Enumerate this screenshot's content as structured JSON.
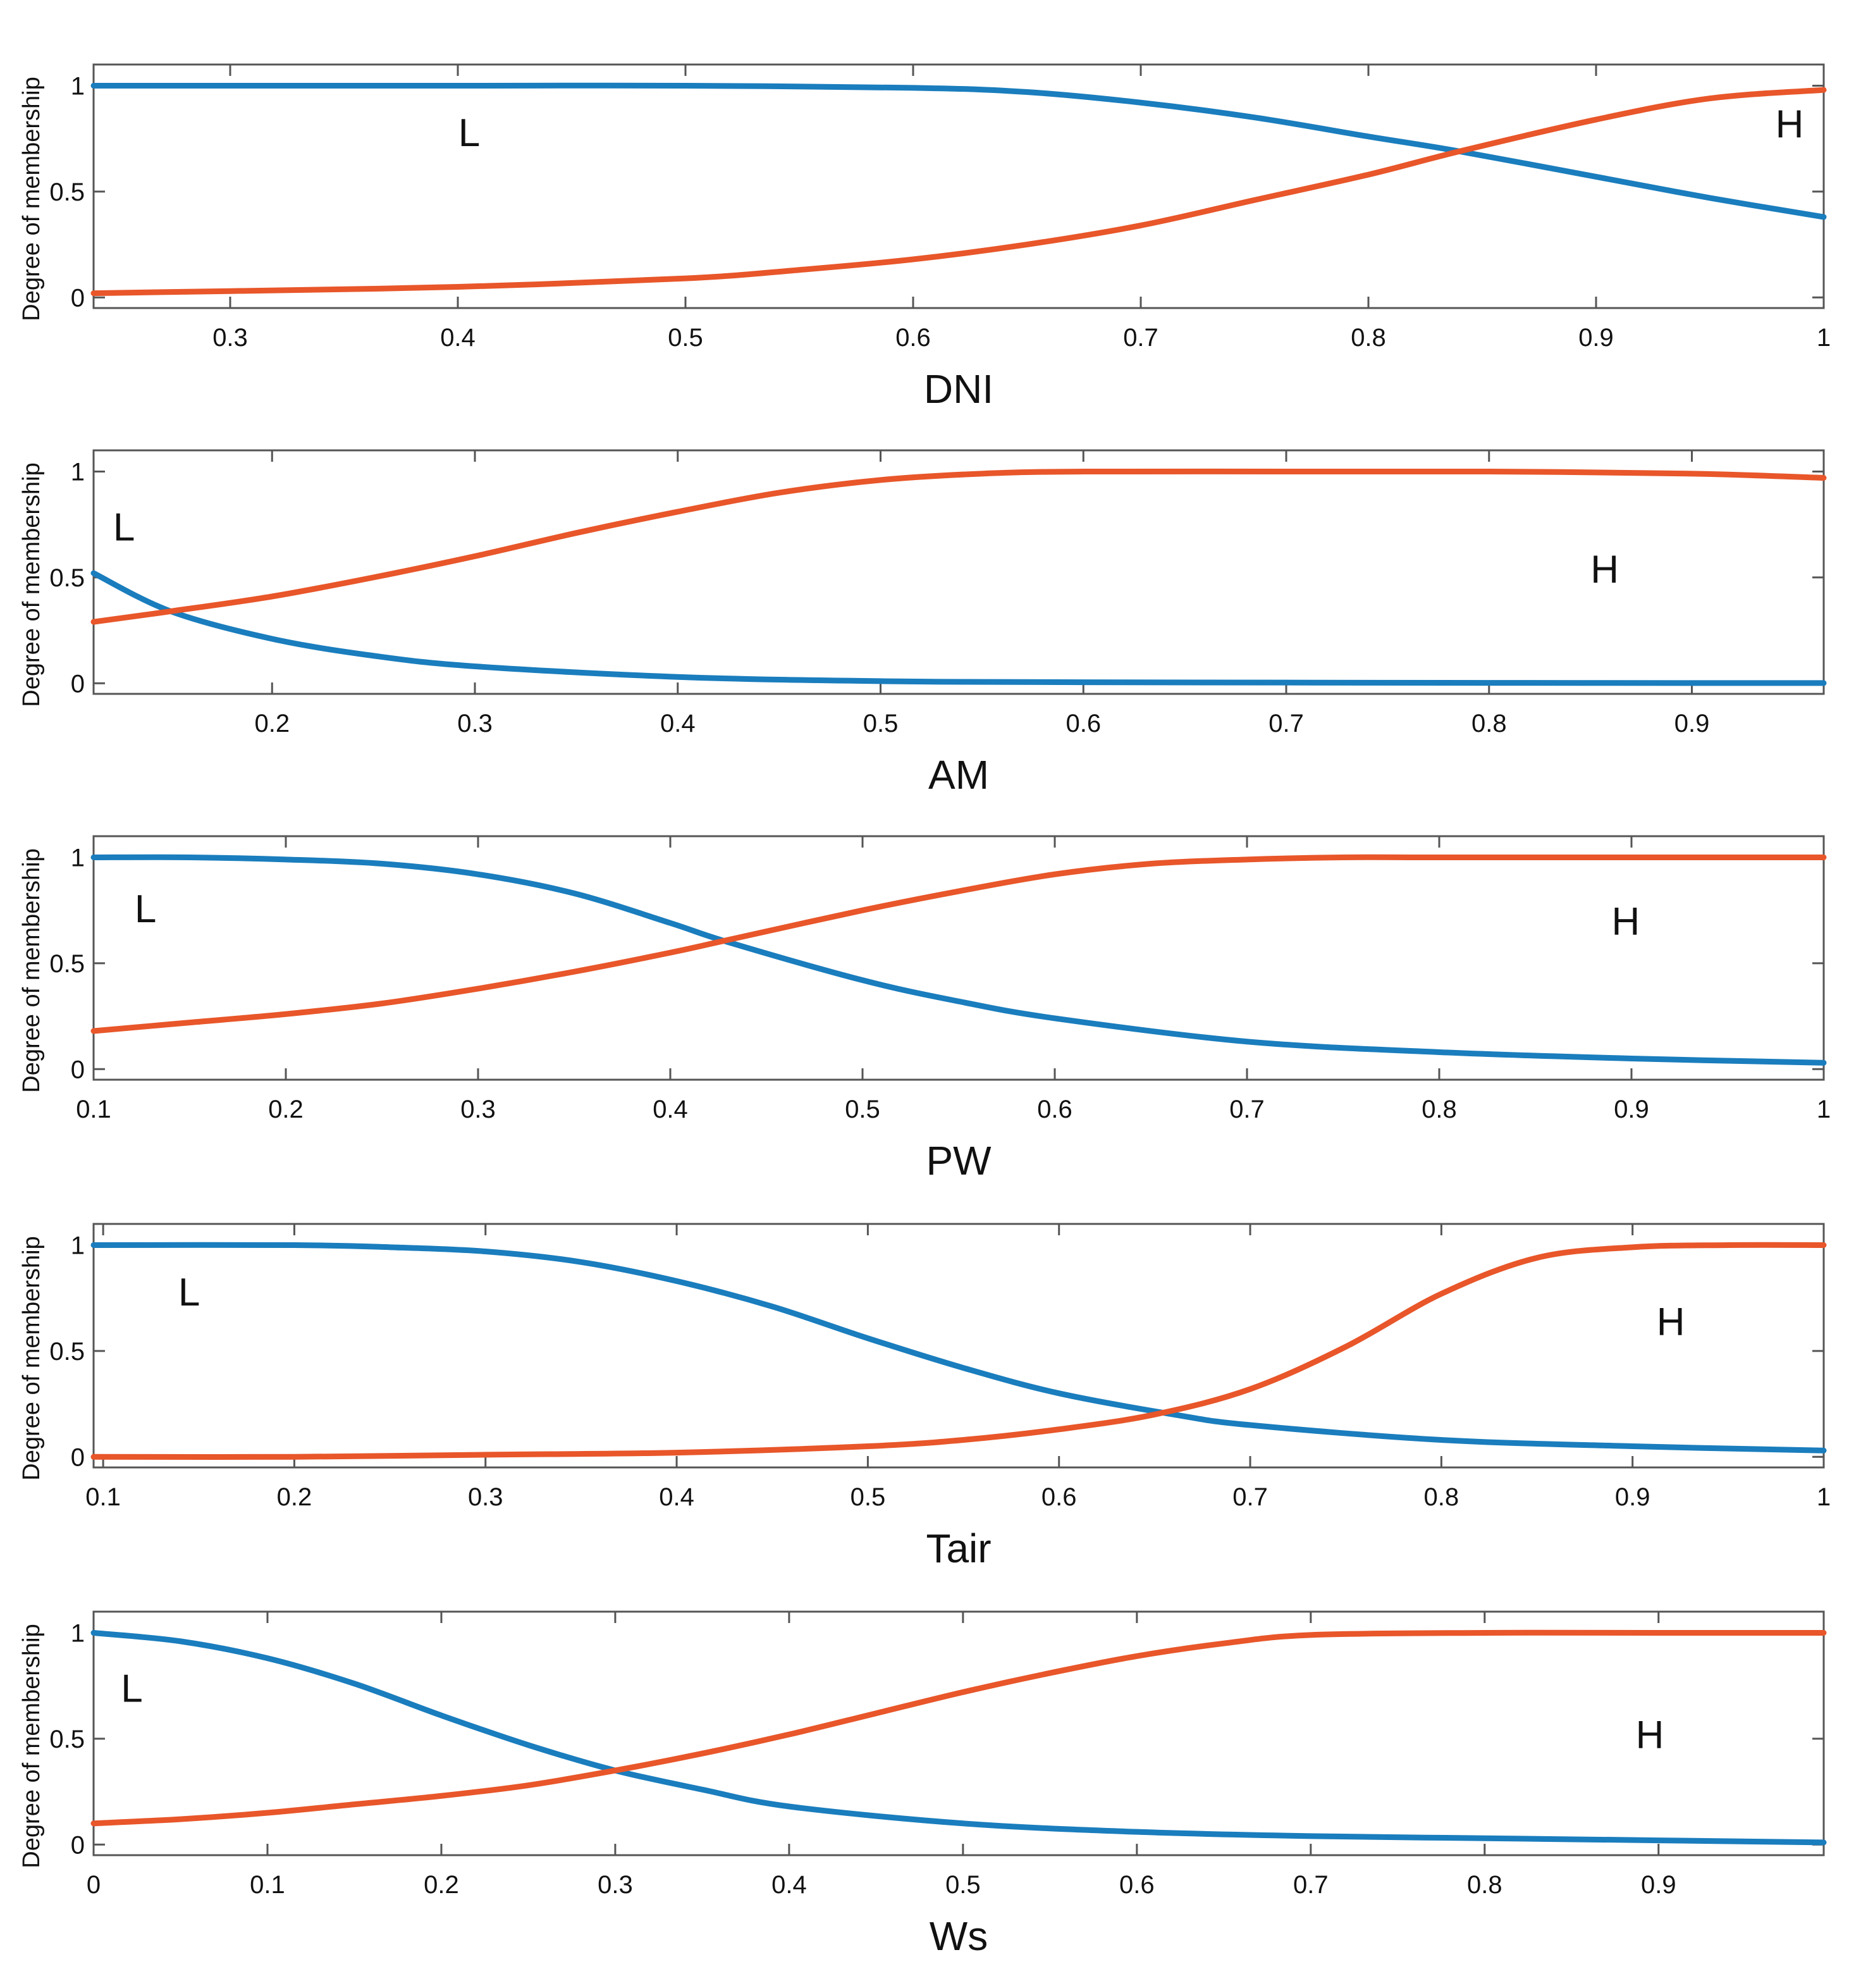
{
  "colors": {
    "low": "#1a7dbd",
    "high": "#e8562a",
    "axis": "#555555"
  },
  "chart_data": [
    {
      "type": "line",
      "xlabel": "DNI",
      "ylabel": "Degree of membership",
      "xlim": [
        0.24,
        1.0
      ],
      "ylim": [
        -0.05,
        1.1
      ],
      "xticks": [
        0.3,
        0.4,
        0.5,
        0.6,
        0.7,
        0.8,
        0.9,
        1
      ],
      "xtick_labels": [
        "0.3",
        "0.4",
        "0.5",
        "0.6",
        "0.7",
        "0.8",
        "0.9",
        "1"
      ],
      "yticks": [
        0,
        0.5,
        1
      ],
      "ytick_labels": [
        "0",
        "0.5",
        "1"
      ],
      "series": [
        {
          "name": "L",
          "x": [
            0.24,
            0.3,
            0.4,
            0.5,
            0.6,
            0.65,
            0.7,
            0.75,
            0.8,
            0.84,
            0.9,
            0.95,
            1.0
          ],
          "values": [
            1.0,
            1.0,
            1.0,
            1.0,
            0.99,
            0.97,
            0.92,
            0.85,
            0.76,
            0.69,
            0.57,
            0.47,
            0.38
          ]
        },
        {
          "name": "H",
          "x": [
            0.24,
            0.3,
            0.4,
            0.5,
            0.55,
            0.6,
            0.65,
            0.7,
            0.75,
            0.8,
            0.84,
            0.9,
            0.95,
            1.0
          ],
          "values": [
            0.02,
            0.03,
            0.05,
            0.09,
            0.13,
            0.18,
            0.25,
            0.34,
            0.46,
            0.58,
            0.69,
            0.84,
            0.94,
            0.98
          ]
        }
      ],
      "annotations": [
        {
          "text": "L",
          "x": 0.405,
          "y": 0.78
        },
        {
          "text": "H",
          "x": 0.985,
          "y": 0.82
        }
      ]
    },
    {
      "type": "line",
      "xlabel": "AM",
      "ylabel": "Degree of membership",
      "xlim": [
        0.112,
        0.965
      ],
      "ylim": [
        -0.05,
        1.1
      ],
      "xticks": [
        0.2,
        0.3,
        0.4,
        0.5,
        0.6,
        0.7,
        0.8,
        0.9
      ],
      "xtick_labels": [
        "0.2",
        "0.3",
        "0.4",
        "0.5",
        "0.6",
        "0.7",
        "0.8",
        "0.9"
      ],
      "yticks": [
        0,
        0.5,
        1
      ],
      "ytick_labels": [
        "0",
        "0.5",
        "1"
      ],
      "series": [
        {
          "name": "L",
          "x": [
            0.112,
            0.15,
            0.2,
            0.25,
            0.3,
            0.4,
            0.5,
            0.6,
            0.8,
            0.965
          ],
          "values": [
            0.52,
            0.34,
            0.21,
            0.13,
            0.08,
            0.03,
            0.01,
            0.005,
            0.002,
            0.001
          ]
        },
        {
          "name": "H",
          "x": [
            0.112,
            0.15,
            0.2,
            0.25,
            0.3,
            0.35,
            0.4,
            0.45,
            0.5,
            0.55,
            0.6,
            0.7,
            0.8,
            0.9,
            0.965
          ],
          "values": [
            0.29,
            0.34,
            0.41,
            0.5,
            0.6,
            0.71,
            0.81,
            0.9,
            0.96,
            0.99,
            1.0,
            1.0,
            1.0,
            0.99,
            0.97
          ]
        }
      ],
      "annotations": [
        {
          "text": "L",
          "x": 0.127,
          "y": 0.74
        },
        {
          "text": "H",
          "x": 0.857,
          "y": 0.54
        }
      ]
    },
    {
      "type": "line",
      "xlabel": "PW",
      "ylabel": "Degree of membership",
      "xlim": [
        0.1,
        1.0
      ],
      "ylim": [
        -0.05,
        1.1
      ],
      "xticks": [
        0.1,
        0.2,
        0.3,
        0.4,
        0.5,
        0.6,
        0.7,
        0.8,
        0.9,
        1
      ],
      "xtick_labels": [
        "0.1",
        "0.2",
        "0.3",
        "0.4",
        "0.5",
        "0.6",
        "0.7",
        "0.8",
        "0.9",
        "1"
      ],
      "yticks": [
        0,
        0.5,
        1
      ],
      "ytick_labels": [
        "0",
        "0.5",
        "1"
      ],
      "series": [
        {
          "name": "L",
          "x": [
            0.1,
            0.15,
            0.2,
            0.25,
            0.3,
            0.35,
            0.4,
            0.43,
            0.5,
            0.55,
            0.6,
            0.7,
            0.8,
            0.9,
            1.0
          ],
          "values": [
            1.0,
            1.0,
            0.99,
            0.97,
            0.92,
            0.83,
            0.69,
            0.6,
            0.42,
            0.32,
            0.24,
            0.13,
            0.08,
            0.05,
            0.03
          ]
        },
        {
          "name": "H",
          "x": [
            0.1,
            0.15,
            0.2,
            0.25,
            0.3,
            0.35,
            0.4,
            0.43,
            0.5,
            0.55,
            0.6,
            0.65,
            0.7,
            0.75,
            0.8,
            0.9,
            1.0
          ],
          "values": [
            0.18,
            0.22,
            0.26,
            0.31,
            0.38,
            0.46,
            0.55,
            0.61,
            0.75,
            0.84,
            0.92,
            0.97,
            0.99,
            1.0,
            1.0,
            1.0,
            1.0
          ]
        }
      ],
      "annotations": [
        {
          "text": "L",
          "x": 0.127,
          "y": 0.76
        },
        {
          "text": "H",
          "x": 0.897,
          "y": 0.7
        }
      ]
    },
    {
      "type": "line",
      "xlabel": "Tair",
      "ylabel": "Degree of membership",
      "xlim": [
        0.095,
        1.0
      ],
      "ylim": [
        -0.05,
        1.1
      ],
      "xticks": [
        0.1,
        0.2,
        0.3,
        0.4,
        0.5,
        0.6,
        0.7,
        0.8,
        0.9,
        1
      ],
      "xtick_labels": [
        "0.1",
        "0.2",
        "0.3",
        "0.4",
        "0.5",
        "0.6",
        "0.7",
        "0.8",
        "0.9",
        "1"
      ],
      "yticks": [
        0,
        0.5,
        1
      ],
      "ytick_labels": [
        "0",
        "0.5",
        "1"
      ],
      "series": [
        {
          "name": "L",
          "x": [
            0.095,
            0.2,
            0.25,
            0.3,
            0.35,
            0.4,
            0.45,
            0.5,
            0.55,
            0.6,
            0.66,
            0.7,
            0.8,
            0.9,
            1.0
          ],
          "values": [
            1.0,
            1.0,
            0.99,
            0.97,
            0.92,
            0.83,
            0.71,
            0.56,
            0.42,
            0.3,
            0.2,
            0.15,
            0.08,
            0.05,
            0.03
          ]
        },
        {
          "name": "H",
          "x": [
            0.095,
            0.2,
            0.3,
            0.4,
            0.5,
            0.55,
            0.6,
            0.65,
            0.7,
            0.75,
            0.8,
            0.85,
            0.9,
            0.95,
            1.0
          ],
          "values": [
            0.0,
            0.0,
            0.01,
            0.02,
            0.05,
            0.08,
            0.13,
            0.2,
            0.32,
            0.52,
            0.77,
            0.94,
            0.99,
            1.0,
            1.0
          ]
        }
      ],
      "annotations": [
        {
          "text": "L",
          "x": 0.145,
          "y": 0.78
        },
        {
          "text": "H",
          "x": 0.92,
          "y": 0.64
        }
      ]
    },
    {
      "type": "line",
      "xlabel": "Ws",
      "ylabel": "Degree of membership",
      "xlim": [
        0.0,
        0.995
      ],
      "ylim": [
        -0.05,
        1.1
      ],
      "xticks": [
        0,
        0.1,
        0.2,
        0.3,
        0.4,
        0.5,
        0.6,
        0.7,
        0.8,
        0.9
      ],
      "xtick_labels": [
        "0",
        "0.1",
        "0.2",
        "0.3",
        "0.4",
        "0.5",
        "0.6",
        "0.7",
        "0.8",
        "0.9"
      ],
      "yticks": [
        0,
        0.5,
        1
      ],
      "ytick_labels": [
        "0",
        "0.5",
        "1"
      ],
      "series": [
        {
          "name": "L",
          "x": [
            0.0,
            0.05,
            0.1,
            0.15,
            0.2,
            0.25,
            0.3,
            0.35,
            0.4,
            0.5,
            0.6,
            0.7,
            0.8,
            0.9,
            0.995
          ],
          "values": [
            1.0,
            0.96,
            0.88,
            0.76,
            0.61,
            0.47,
            0.35,
            0.26,
            0.18,
            0.1,
            0.06,
            0.04,
            0.03,
            0.02,
            0.01
          ]
        },
        {
          "name": "H",
          "x": [
            0.0,
            0.05,
            0.1,
            0.15,
            0.2,
            0.25,
            0.3,
            0.35,
            0.4,
            0.45,
            0.5,
            0.55,
            0.6,
            0.65,
            0.7,
            0.8,
            0.9,
            0.995
          ],
          "values": [
            0.1,
            0.12,
            0.15,
            0.19,
            0.23,
            0.28,
            0.35,
            0.43,
            0.52,
            0.62,
            0.72,
            0.81,
            0.89,
            0.95,
            0.99,
            1.0,
            1.0,
            1.0
          ]
        }
      ],
      "annotations": [
        {
          "text": "L",
          "x": 0.022,
          "y": 0.74
        },
        {
          "text": "H",
          "x": 0.895,
          "y": 0.52
        }
      ]
    }
  ]
}
